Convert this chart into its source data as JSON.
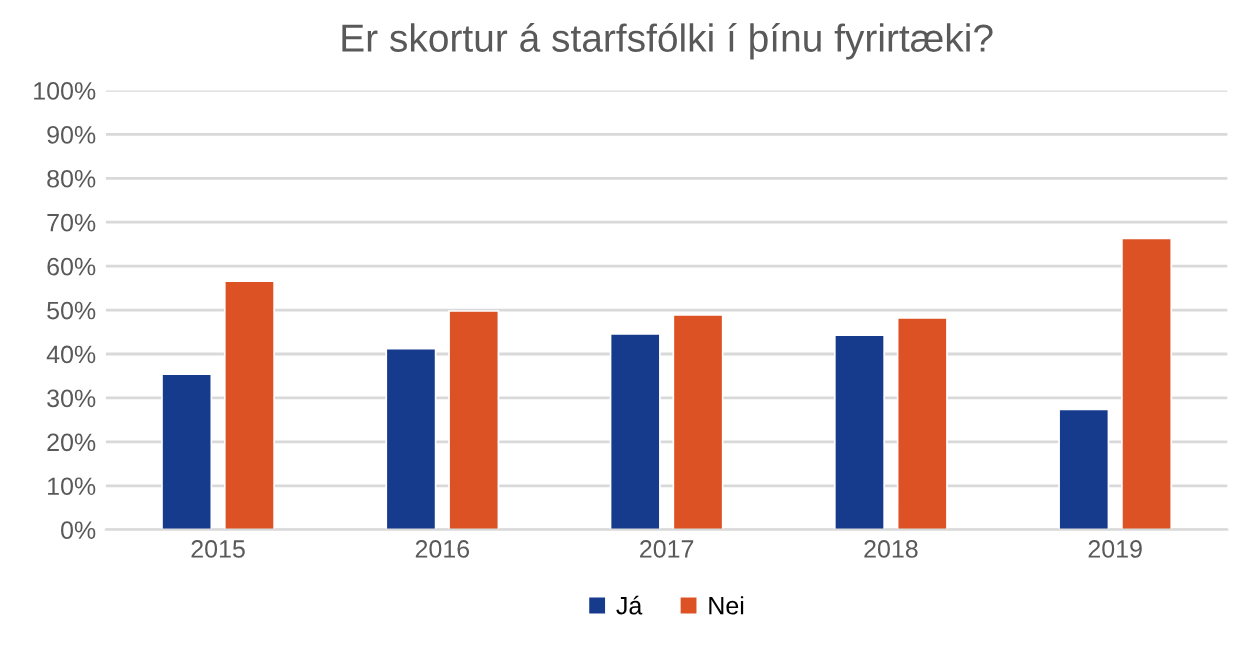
{
  "chart_data": {
    "type": "bar",
    "title": "Er skortur á starfsfólki í þínu fyrirtæki?",
    "categories": [
      "2015",
      "2016",
      "2017",
      "2018",
      "2019"
    ],
    "series": [
      {
        "name": "Já",
        "color": "#163b8c",
        "values": [
          35.4,
          41.2,
          44.6,
          44.3,
          27.4
        ]
      },
      {
        "name": "Nei",
        "color": "#dc5224",
        "values": [
          56.6,
          49.8,
          48.9,
          48.2,
          66.3
        ]
      }
    ],
    "ylim": [
      0,
      100
    ],
    "yticks": [
      {
        "value": 0,
        "label": "0%"
      },
      {
        "value": 10,
        "label": "10%"
      },
      {
        "value": 20,
        "label": "20%"
      },
      {
        "value": 30,
        "label": "30%"
      },
      {
        "value": 40,
        "label": "40%"
      },
      {
        "value": 50,
        "label": "50%"
      },
      {
        "value": 60,
        "label": "60%"
      },
      {
        "value": 70,
        "label": "70%"
      },
      {
        "value": 80,
        "label": "80%"
      },
      {
        "value": 90,
        "label": "90%"
      },
      {
        "value": 100,
        "label": "100%"
      }
    ],
    "grid": "y",
    "legend": "bottom"
  }
}
